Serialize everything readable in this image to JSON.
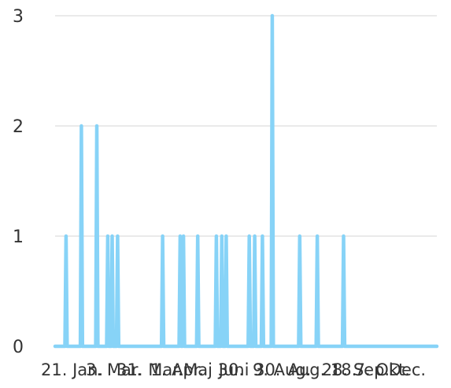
{
  "chart_data": {
    "type": "line",
    "title": "",
    "xlabel": "",
    "ylabel": "",
    "ylim": [
      0,
      3
    ],
    "yticks": [
      0,
      1,
      2,
      3
    ],
    "grid": true,
    "legend": "none",
    "series_color": "#87d3f7",
    "grid_color": "#e3e3e3",
    "x_range_days": [
      0,
      348
    ],
    "x_tick_labels": [
      {
        "day": 0,
        "label": "21. Jan."
      },
      {
        "day": 41,
        "label": "3. Mar."
      },
      {
        "day": 69,
        "label": "31. Mar."
      },
      {
        "day": 100,
        "label": "1. Apr."
      },
      {
        "day": 130,
        "label": "Maj 30."
      },
      {
        "day": 162,
        "label": "Juni 30."
      },
      {
        "day": 193,
        "label": "9. Aug."
      },
      {
        "day": 225,
        "label": "Aug. 18."
      },
      {
        "day": 256,
        "label": "28. Sep."
      },
      {
        "day": 286,
        "label": "7. Okt."
      },
      {
        "day": 317,
        "label": "Dec."
      }
    ],
    "series": [
      {
        "points": [
          [
            0,
            0
          ],
          [
            9,
            0
          ],
          [
            10,
            1
          ],
          [
            11,
            0
          ],
          [
            23,
            0
          ],
          [
            24,
            2
          ],
          [
            25,
            0
          ],
          [
            37,
            0
          ],
          [
            38,
            2
          ],
          [
            39,
            0
          ],
          [
            47,
            0
          ],
          [
            48,
            1
          ],
          [
            49,
            0
          ],
          [
            51,
            0
          ],
          [
            52,
            1
          ],
          [
            53,
            0
          ],
          [
            56,
            0
          ],
          [
            57,
            1
          ],
          [
            58,
            0
          ],
          [
            97,
            0
          ],
          [
            98,
            1
          ],
          [
            99,
            0
          ],
          [
            113,
            0
          ],
          [
            114,
            1
          ],
          [
            115,
            0
          ],
          [
            116,
            0
          ],
          [
            117,
            1
          ],
          [
            118,
            0
          ],
          [
            129,
            0
          ],
          [
            130,
            1
          ],
          [
            131,
            0
          ],
          [
            146,
            0
          ],
          [
            147,
            1
          ],
          [
            148,
            0
          ],
          [
            151,
            0
          ],
          [
            152,
            1
          ],
          [
            153,
            0
          ],
          [
            155,
            0
          ],
          [
            156,
            1
          ],
          [
            157,
            0
          ],
          [
            176,
            0
          ],
          [
            177,
            1
          ],
          [
            178,
            0
          ],
          [
            181,
            0
          ],
          [
            182,
            1
          ],
          [
            183,
            0
          ],
          [
            188,
            0
          ],
          [
            189,
            1
          ],
          [
            190,
            0
          ],
          [
            197,
            0
          ],
          [
            198,
            3
          ],
          [
            199,
            0
          ],
          [
            222,
            0
          ],
          [
            223,
            1
          ],
          [
            224,
            0
          ],
          [
            238,
            0
          ],
          [
            239,
            1
          ],
          [
            240,
            0
          ],
          [
            262,
            0
          ],
          [
            263,
            1
          ],
          [
            264,
            0
          ],
          [
            266,
            0
          ],
          [
            267,
            0
          ],
          [
            348,
            0
          ]
        ]
      }
    ]
  }
}
